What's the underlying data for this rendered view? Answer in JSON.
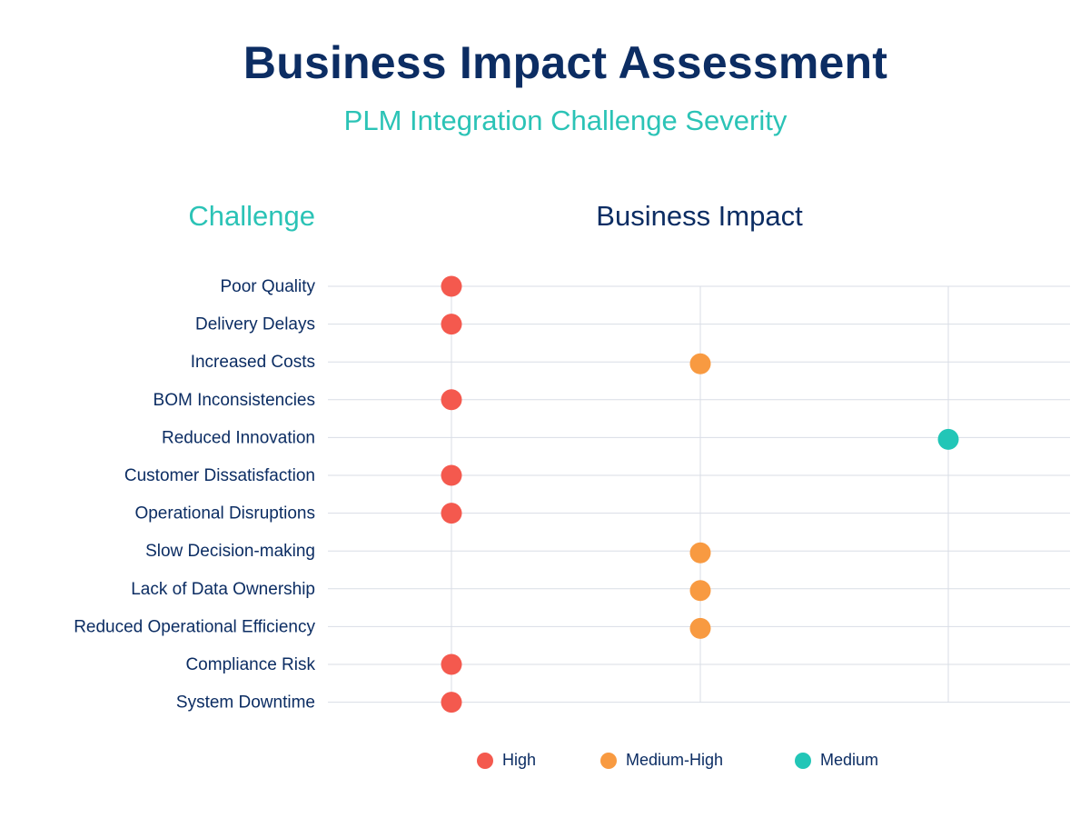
{
  "title": "Business Impact Assessment",
  "subtitle": "PLM Integration Challenge Severity",
  "column_headers": {
    "left": "Challenge",
    "right": "Business Impact"
  },
  "colors": {
    "High": "#f4594e",
    "Medium-High": "#f89a41",
    "Medium": "#22c6b7",
    "grid": "#d9dde6",
    "text": "#0c2d63"
  },
  "legend": [
    {
      "label": "High",
      "color": "#f4594e"
    },
    {
      "label": "Medium-High",
      "color": "#f89a41"
    },
    {
      "label": "Medium",
      "color": "#22c6b7"
    }
  ],
  "chart_data": {
    "type": "scatter",
    "title": "Business Impact Assessment",
    "subtitle": "PLM Integration Challenge Severity",
    "xlabel": "Business Impact",
    "ylabel": "Challenge",
    "x_levels": [
      "High",
      "Medium-High",
      "Medium"
    ],
    "grid": true,
    "legend_position": "bottom",
    "points": [
      {
        "category": "Poor Quality",
        "impact": "High"
      },
      {
        "category": "Delivery Delays",
        "impact": "High"
      },
      {
        "category": "Increased Costs",
        "impact": "Medium-High"
      },
      {
        "category": "BOM Inconsistencies",
        "impact": "High"
      },
      {
        "category": "Reduced Innovation",
        "impact": "Medium"
      },
      {
        "category": "Customer Dissatisfaction",
        "impact": "High"
      },
      {
        "category": "Operational Disruptions",
        "impact": "High"
      },
      {
        "category": "Slow Decision-making",
        "impact": "Medium-High"
      },
      {
        "category": "Lack of Data Ownership",
        "impact": "Medium-High"
      },
      {
        "category": "Reduced Operational Efficiency",
        "impact": "Medium-High"
      },
      {
        "category": "Compliance Risk",
        "impact": "High"
      },
      {
        "category": "System Downtime",
        "impact": "High"
      }
    ]
  }
}
